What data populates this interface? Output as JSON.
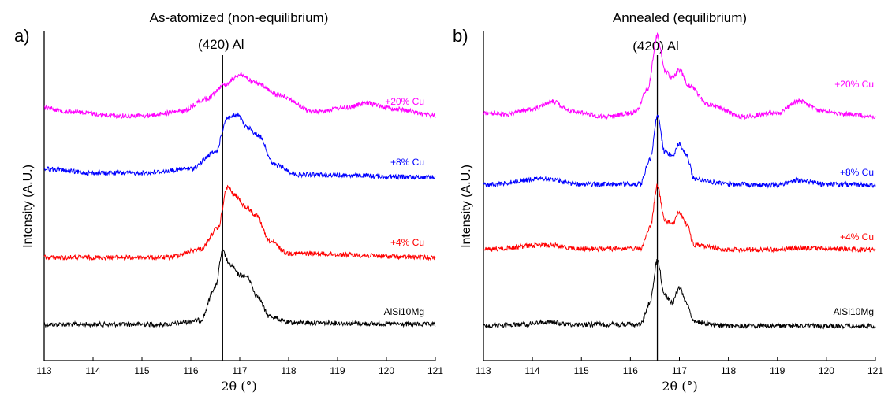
{
  "chart_data": [
    {
      "type": "line",
      "panel_label": "a)",
      "title": "As-atomized (non-equilibrium)",
      "xlabel": "2θ (°)",
      "ylabel": "Intensity (A.U.)",
      "xlim": [
        113,
        121
      ],
      "x_ticks": [
        113,
        114,
        115,
        116,
        117,
        118,
        119,
        120,
        121
      ],
      "reference_line": {
        "label": "(420) Al",
        "x": 116.65
      },
      "y_ticks_shown": false,
      "series": [
        {
          "name": "AlSi10Mg",
          "color": "#000000",
          "offset": 0,
          "points": [
            [
              113,
              0
            ],
            [
              115.5,
              0
            ],
            [
              116.2,
              0.05
            ],
            [
              116.5,
              0.45
            ],
            [
              116.65,
              0.88
            ],
            [
              116.8,
              0.72
            ],
            [
              117.0,
              0.6
            ],
            [
              117.15,
              0.58
            ],
            [
              117.35,
              0.35
            ],
            [
              117.6,
              0.1
            ],
            [
              118.0,
              0.02
            ],
            [
              121,
              0
            ]
          ]
        },
        {
          "name": "+4% Cu",
          "color": "#ff0000",
          "offset": 1,
          "points": [
            [
              113,
              0
            ],
            [
              115.5,
              0
            ],
            [
              116.2,
              0.1
            ],
            [
              116.55,
              0.35
            ],
            [
              116.75,
              0.85
            ],
            [
              116.9,
              0.75
            ],
            [
              117.15,
              0.6
            ],
            [
              117.35,
              0.5
            ],
            [
              117.6,
              0.2
            ],
            [
              118.0,
              0.05
            ],
            [
              121,
              0
            ]
          ]
        },
        {
          "name": "+8% Cu",
          "color": "#0000ff",
          "offset": 2,
          "points": [
            [
              113,
              0.1
            ],
            [
              114,
              0.05
            ],
            [
              115,
              0.05
            ],
            [
              116,
              0.1
            ],
            [
              116.5,
              0.3
            ],
            [
              116.75,
              0.72
            ],
            [
              116.95,
              0.75
            ],
            [
              117.15,
              0.6
            ],
            [
              117.4,
              0.5
            ],
            [
              117.7,
              0.15
            ],
            [
              118.2,
              0.03
            ],
            [
              121,
              0
            ]
          ]
        },
        {
          "name": "+20% Cu",
          "color": "#ff00ff",
          "offset": 3,
          "points": [
            [
              113,
              0.1
            ],
            [
              113.5,
              0.05
            ],
            [
              114.5,
              0
            ],
            [
              115,
              0
            ],
            [
              115.8,
              0.05
            ],
            [
              116.3,
              0.2
            ],
            [
              116.7,
              0.38
            ],
            [
              117.0,
              0.5
            ],
            [
              117.3,
              0.4
            ],
            [
              117.8,
              0.25
            ],
            [
              118.5,
              0.05
            ],
            [
              119.2,
              0.1
            ],
            [
              119.6,
              0.15
            ],
            [
              120.2,
              0.08
            ],
            [
              121,
              0
            ]
          ]
        }
      ]
    },
    {
      "type": "line",
      "panel_label": "b)",
      "title": "Annealed (equilibrium)",
      "xlabel": "2θ (°)",
      "ylabel": "Intensity (A.U.)",
      "xlim": [
        113,
        121
      ],
      "x_ticks": [
        113,
        114,
        115,
        116,
        117,
        118,
        119,
        120,
        121
      ],
      "reference_line": {
        "label": "(420) Al",
        "x": 116.55
      },
      "y_ticks_shown": false,
      "series": [
        {
          "name": "AlSi10Mg",
          "color": "#000000",
          "offset": 0,
          "points": [
            [
              113,
              0
            ],
            [
              113.8,
              0.02
            ],
            [
              114.3,
              0.05
            ],
            [
              114.8,
              0.02
            ],
            [
              116.2,
              0.02
            ],
            [
              116.4,
              0.3
            ],
            [
              116.55,
              0.85
            ],
            [
              116.7,
              0.4
            ],
            [
              116.85,
              0.3
            ],
            [
              117.0,
              0.5
            ],
            [
              117.15,
              0.3
            ],
            [
              117.3,
              0.05
            ],
            [
              118,
              0
            ],
            [
              121,
              0
            ]
          ]
        },
        {
          "name": "+4% Cu",
          "color": "#ff0000",
          "offset": 1,
          "points": [
            [
              113,
              0.02
            ],
            [
              114.3,
              0.08
            ],
            [
              115,
              0.03
            ],
            [
              116.2,
              0.03
            ],
            [
              116.4,
              0.3
            ],
            [
              116.55,
              0.85
            ],
            [
              116.7,
              0.4
            ],
            [
              116.85,
              0.35
            ],
            [
              117.0,
              0.5
            ],
            [
              117.15,
              0.35
            ],
            [
              117.3,
              0.08
            ],
            [
              118,
              0.02
            ],
            [
              119,
              0.02
            ],
            [
              119.5,
              0.04
            ],
            [
              121,
              0.02
            ]
          ]
        },
        {
          "name": "+8% Cu",
          "color": "#0000ff",
          "offset": 2,
          "points": [
            [
              113,
              0.02
            ],
            [
              114.2,
              0.1
            ],
            [
              115,
              0.03
            ],
            [
              116.2,
              0.03
            ],
            [
              116.4,
              0.35
            ],
            [
              116.55,
              0.92
            ],
            [
              116.7,
              0.45
            ],
            [
              116.85,
              0.4
            ],
            [
              117.0,
              0.55
            ],
            [
              117.15,
              0.4
            ],
            [
              117.3,
              0.1
            ],
            [
              118,
              0.03
            ],
            [
              119,
              0.02
            ],
            [
              119.4,
              0.08
            ],
            [
              120,
              0.03
            ],
            [
              121,
              0.02
            ]
          ]
        },
        {
          "name": "+20% Cu",
          "color": "#ff00ff",
          "offset": 3,
          "points": [
            [
              113,
              0.1
            ],
            [
              113.5,
              0.08
            ],
            [
              114,
              0.15
            ],
            [
              114.4,
              0.25
            ],
            [
              114.8,
              0.12
            ],
            [
              115.5,
              0.05
            ],
            [
              116.1,
              0.1
            ],
            [
              116.35,
              0.4
            ],
            [
              116.55,
              1.1
            ],
            [
              116.7,
              0.65
            ],
            [
              116.85,
              0.55
            ],
            [
              117.0,
              0.65
            ],
            [
              117.2,
              0.45
            ],
            [
              117.6,
              0.2
            ],
            [
              118.3,
              0.05
            ],
            [
              119,
              0.1
            ],
            [
              119.45,
              0.25
            ],
            [
              119.9,
              0.12
            ],
            [
              120.5,
              0.08
            ],
            [
              121,
              0.05
            ]
          ]
        }
      ]
    }
  ]
}
